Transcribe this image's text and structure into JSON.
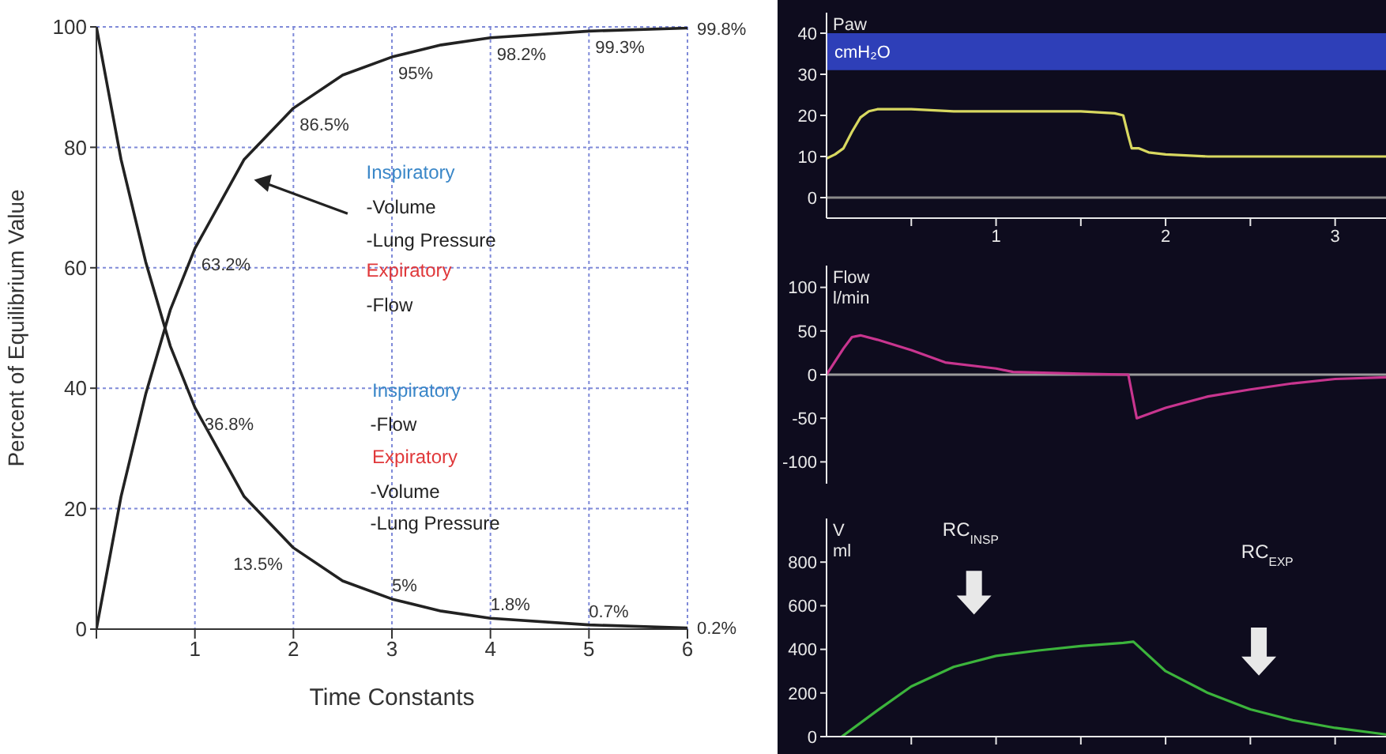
{
  "chart_data": [
    {
      "type": "line",
      "xlabel": "Time Constants",
      "ylabel": "Percent of Equilibrium Value",
      "xlim": [
        0,
        6
      ],
      "ylim": [
        0,
        100
      ],
      "xticks": [
        {
          "value": 0,
          "label": null
        },
        1,
        2,
        3,
        4,
        5,
        6
      ],
      "yticks": [
        0,
        20,
        40,
        60,
        80,
        100
      ],
      "grid": true,
      "marker": "none",
      "line_style": "solid",
      "series": [
        {
          "color": "#222222",
          "x": [
            0,
            0.25,
            0.5,
            0.75,
            1,
            1.5,
            2,
            2.5,
            3,
            3.5,
            4,
            5,
            6
          ],
          "values": [
            0,
            22,
            39,
            53,
            63.2,
            78,
            86.5,
            92,
            95,
            97,
            98.2,
            99.3,
            99.8
          ],
          "value_labels": [
            null,
            null,
            null,
            null,
            "63.2%",
            null,
            "86.5%",
            null,
            "95%",
            null,
            "98.2%",
            "99.3%",
            "99.8%"
          ]
        },
        {
          "color": "#222222",
          "x": [
            0,
            0.25,
            0.5,
            0.75,
            1,
            1.5,
            2,
            2.5,
            3,
            3.5,
            4,
            5,
            6
          ],
          "values": [
            100,
            78,
            61,
            47,
            36.8,
            22,
            13.5,
            8,
            5,
            3,
            1.8,
            0.7,
            0.2
          ],
          "value_labels": [
            null,
            null,
            null,
            null,
            "36.8%",
            null,
            "13.5%",
            null,
            "5%",
            null,
            "1.8%",
            "0.7%",
            "0.2%"
          ]
        }
      ],
      "annotations": [
        "Inspiratory",
        "-Volume",
        "-Lung Pressure",
        "Expiratory",
        "-Flow",
        "Inspiratory",
        "-Flow",
        "Expiratory",
        "-Volume",
        "-Lung Pressure"
      ]
    },
    {
      "type": "line",
      "ylabel": "Paw",
      "xlim": [
        0,
        3.3
      ],
      "ylim": [
        -5,
        45
      ],
      "xticks": [
        {
          "value": 0.5,
          "label": null
        },
        1,
        {
          "value": 1.5,
          "label": null
        },
        2,
        {
          "value": 2.5,
          "label": null
        },
        3
      ],
      "yticks": [
        0,
        10,
        20,
        30,
        40
      ],
      "grid": false,
      "marker": "none",
      "bands": [
        {
          "axis": "y",
          "from": 31,
          "to": 40,
          "label": "cmH₂O",
          "color": "#2e3fb8"
        }
      ],
      "ref_lines": [
        {
          "axis": "y",
          "value": 0,
          "color": "#8a8a8a"
        }
      ],
      "series": [
        {
          "color": "#d8d860",
          "x": [
            0,
            0.05,
            0.1,
            0.15,
            0.2,
            0.25,
            0.3,
            0.5,
            0.75,
            1,
            1.25,
            1.5,
            1.7,
            1.75,
            1.78,
            1.8,
            1.84,
            1.9,
            2,
            2.25,
            2.5,
            3,
            3.3
          ],
          "values": [
            9.5,
            10.5,
            12,
            16,
            19.5,
            21,
            21.5,
            21.5,
            21,
            21,
            21,
            21,
            20.5,
            20,
            15,
            12,
            12,
            11,
            10.5,
            10,
            10,
            10,
            10
          ]
        }
      ]
    },
    {
      "type": "line",
      "ylabel": "Flow\nl/min",
      "xlim": [
        0,
        3.3
      ],
      "ylim": [
        -125,
        125
      ],
      "yticks": [
        -100,
        -50,
        0,
        50,
        100
      ],
      "tick_labels": "y",
      "grid": false,
      "marker": "none",
      "ref_lines": [
        {
          "axis": "y",
          "value": 0,
          "color": "#9a9a9a"
        }
      ],
      "series": [
        {
          "color": "#c8358f",
          "x": [
            0,
            0.05,
            0.1,
            0.15,
            0.2,
            0.3,
            0.5,
            0.7,
            1,
            1.1,
            1.5,
            1.78,
            1.83,
            1.9,
            2,
            2.25,
            2.5,
            2.75,
            3,
            3.3
          ],
          "values": [
            0,
            15,
            30,
            43,
            45,
            40,
            28,
            14,
            7,
            3,
            1,
            0,
            -50,
            -45,
            -38,
            -25,
            -17,
            -10,
            -5,
            -3
          ]
        }
      ]
    },
    {
      "type": "line",
      "ylabel": "V\nml",
      "xlim": [
        0,
        3.3
      ],
      "ylim": [
        0,
        1000
      ],
      "xticks": [
        {
          "value": 0.5,
          "label": null
        },
        {
          "value": 1,
          "label": null
        },
        {
          "value": 1.5,
          "label": null
        },
        {
          "value": 2,
          "label": null
        },
        {
          "value": 2.5,
          "label": null
        },
        {
          "value": 3,
          "label": null
        }
      ],
      "yticks": [
        0,
        200,
        400,
        600,
        800
      ],
      "tick_labels": "y",
      "grid": false,
      "marker": "none",
      "annotations": [
        "RC$_{INSP}$",
        "RC$_{EXP}$"
      ],
      "series": [
        {
          "color": "#3cb43c",
          "x": [
            0.09,
            0.3,
            0.5,
            0.75,
            1,
            1.25,
            1.5,
            1.75,
            1.81,
            2,
            2.25,
            2.5,
            2.75,
            3,
            3.3
          ],
          "values": [
            0,
            120,
            230,
            320,
            370,
            395,
            415,
            430,
            435,
            300,
            200,
            125,
            75,
            40,
            10
          ]
        }
      ]
    }
  ]
}
